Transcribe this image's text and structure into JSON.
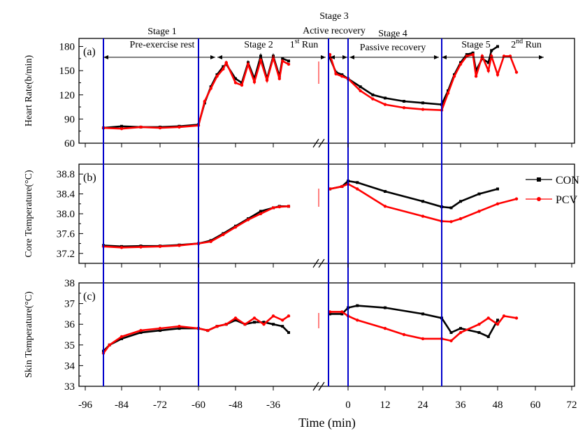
{
  "chart_data": {
    "type": "line",
    "xlabel": "Time (min)",
    "x_ticks": [
      "-96",
      "-84",
      "-72",
      "-60",
      "-48",
      "-36",
      "0",
      "12",
      "24",
      "36",
      "48",
      "60",
      "72"
    ],
    "legend": [
      {
        "name": "CON",
        "color": "#000000",
        "marker": "square"
      },
      {
        "name": "PCV",
        "color": "#ff0000",
        "marker": "circle"
      }
    ],
    "stages": [
      {
        "title": "Stage 1",
        "sub": "Pre-exercise rest"
      },
      {
        "title": "Stage 2",
        "sub": "1st Run"
      },
      {
        "title": "Stage 3",
        "sub": "Active recovery"
      },
      {
        "title": "Stage 4",
        "sub": "Passive recovery"
      },
      {
        "title": "Stage 5",
        "sub": "2nd Run"
      }
    ],
    "stage_boundaries_min": [
      -90,
      -60,
      -6,
      0,
      30
    ],
    "panels": [
      {
        "label": "(a)",
        "ylabel": "Heart Rate(b/min)",
        "ylim": [
          60,
          190
        ],
        "yticks": [
          "60",
          "90",
          "120",
          "150",
          "180"
        ],
        "series": [
          {
            "name": "CON",
            "x": [
              -90,
              -84,
              -78,
              -72,
              -66,
              -60,
              -58,
              -56,
              -54,
              -52,
              -51,
              -48,
              -46,
              -44,
              -42,
              -40,
              -38,
              -36,
              -34,
              -33,
              -31,
              -6,
              -4,
              -2,
              0,
              4,
              8,
              12,
              18,
              24,
              30,
              32,
              34,
              36,
              38,
              40,
              41,
              43,
              45,
              46,
              48
            ],
            "y": [
              79,
              81,
              80,
              80,
              81,
              83,
              110,
              130,
              145,
              155,
              158,
              140,
              135,
              160,
              140,
              168,
              140,
              168,
              143,
              165,
              162,
              166,
              148,
              145,
              140,
              130,
              120,
              116,
              112,
              110,
              108,
              125,
              145,
              160,
              170,
              172,
              150,
              165,
              160,
              175,
              180
            ]
          },
          {
            "name": "PCV",
            "x": [
              -90,
              -84,
              -78,
              -72,
              -66,
              -60,
              -58,
              -56,
              -54,
              -52,
              -51,
              -48,
              -46,
              -44,
              -42,
              -40,
              -38,
              -36,
              -34,
              -33,
              -31,
              -6,
              -4,
              -2,
              0,
              4,
              8,
              12,
              18,
              24,
              30,
              32,
              34,
              36,
              38,
              40,
              41,
              43,
              45,
              46,
              48,
              50,
              52,
              54
            ],
            "y": [
              79,
              78,
              80,
              79,
              80,
              82,
              112,
              128,
              143,
              152,
              160,
              135,
              132,
              158,
              136,
              163,
              138,
              166,
              140,
              162,
              158,
              170,
              146,
              143,
              140,
              125,
              115,
              108,
              104,
              102,
              101,
              122,
              143,
              158,
              168,
              170,
              143,
              168,
              150,
              168,
              145,
              168,
              168,
              148
            ]
          }
        ]
      },
      {
        "label": "(b)",
        "ylabel": "Core Temperature(°C)",
        "ylim": [
          37.0,
          39.0
        ],
        "yticks": [
          "37.2",
          "37.6",
          "38.0",
          "38.4",
          "38.8"
        ],
        "series": [
          {
            "name": "CON",
            "x": [
              -90,
              -84,
              -78,
              -72,
              -66,
              -60,
              -56,
              -52,
              -48,
              -44,
              -40,
              -36,
              -34,
              -31,
              -6,
              -2,
              0,
              3,
              12,
              24,
              30,
              33,
              36,
              42,
              48
            ],
            "y": [
              37.36,
              37.34,
              37.35,
              37.35,
              37.37,
              37.4,
              37.46,
              37.6,
              37.75,
              37.9,
              38.05,
              38.12,
              38.15,
              38.15,
              38.5,
              38.55,
              38.66,
              38.63,
              38.45,
              38.25,
              38.14,
              38.12,
              38.25,
              38.4,
              38.5
            ]
          },
          {
            "name": "PCV",
            "x": [
              -90,
              -84,
              -78,
              -72,
              -66,
              -60,
              -56,
              -52,
              -48,
              -44,
              -40,
              -36,
              -34,
              -31,
              -6,
              -2,
              0,
              3,
              12,
              24,
              30,
              33,
              36,
              42,
              48,
              54
            ],
            "y": [
              37.34,
              37.32,
              37.33,
              37.34,
              37.36,
              37.4,
              37.44,
              37.58,
              37.73,
              37.88,
              38.0,
              38.12,
              38.14,
              38.15,
              38.5,
              38.55,
              38.6,
              38.5,
              38.15,
              37.95,
              37.85,
              37.84,
              37.9,
              38.05,
              38.2,
              38.3
            ]
          }
        ]
      },
      {
        "label": "(c)",
        "ylabel": "Skin Temperature(°C)",
        "ylim": [
          33.0,
          38.0
        ],
        "yticks": [
          "33",
          "34",
          "35",
          "36",
          "37",
          "38"
        ],
        "series": [
          {
            "name": "CON",
            "x": [
              -90,
              -88,
              -84,
              -78,
              -72,
              -66,
              -60,
              -57,
              -54,
              -51,
              -48,
              -45,
              -42,
              -39,
              -36,
              -33,
              -31,
              -6,
              -2,
              0,
              3,
              12,
              24,
              30,
              33,
              36,
              42,
              45,
              48
            ],
            "y": [
              34.7,
              35.0,
              35.3,
              35.6,
              35.7,
              35.8,
              35.8,
              35.7,
              35.9,
              36.0,
              36.2,
              36.0,
              36.1,
              36.1,
              36.0,
              35.9,
              35.6,
              36.5,
              36.5,
              36.8,
              36.9,
              36.8,
              36.5,
              36.3,
              35.6,
              35.8,
              35.6,
              35.4,
              36.2
            ]
          },
          {
            "name": "PCV",
            "x": [
              -90,
              -88,
              -84,
              -78,
              -72,
              -66,
              -60,
              -57,
              -54,
              -51,
              -48,
              -45,
              -42,
              -39,
              -36,
              -33,
              -31,
              -6,
              -2,
              0,
              3,
              12,
              18,
              24,
              30,
              33,
              36,
              42,
              45,
              48,
              50,
              54
            ],
            "y": [
              34.6,
              35.0,
              35.4,
              35.7,
              35.8,
              35.9,
              35.8,
              35.7,
              35.9,
              36.0,
              36.3,
              36.0,
              36.3,
              36.0,
              36.4,
              36.2,
              36.4,
              36.6,
              36.6,
              36.4,
              36.2,
              35.8,
              35.5,
              35.3,
              35.3,
              35.2,
              35.6,
              36.0,
              36.3,
              36.0,
              36.4,
              36.3
            ]
          }
        ]
      }
    ]
  }
}
